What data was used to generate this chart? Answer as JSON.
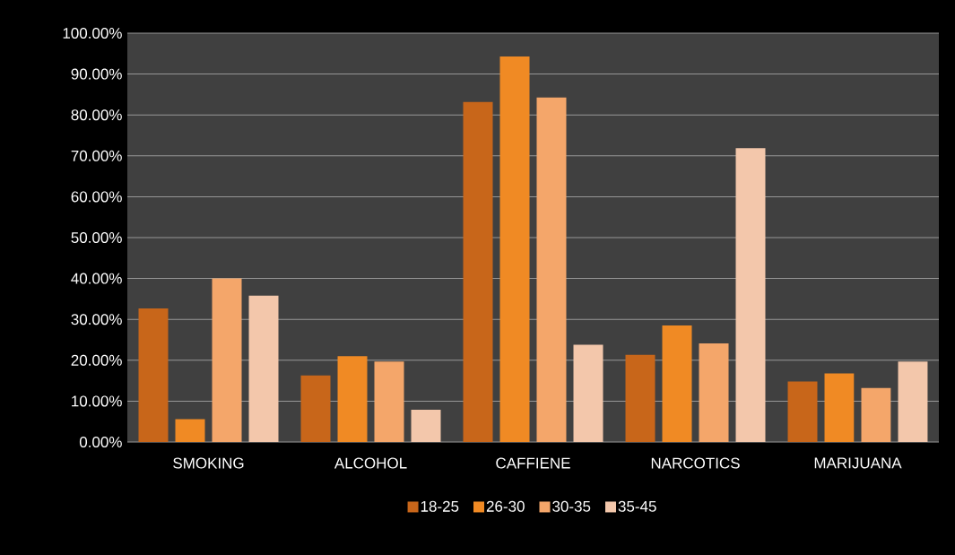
{
  "chart_data": {
    "type": "bar",
    "categories": [
      "SMOKING",
      "ALCOHOL",
      "CAFFIENE",
      "NARCOTICS",
      "MARIJUANA"
    ],
    "series": [
      {
        "name": "18-25",
        "color": "#c8661a",
        "values": [
          32.7,
          16.3,
          83.2,
          21.3,
          14.8
        ]
      },
      {
        "name": "26-30",
        "color": "#f08a24",
        "values": [
          5.6,
          21,
          94.3,
          28.5,
          16.8
        ]
      },
      {
        "name": "30-35",
        "color": "#f4a66a",
        "values": [
          40,
          19.7,
          84.3,
          24.1,
          13.2
        ]
      },
      {
        "name": "35-45",
        "color": "#f3c7ab",
        "values": [
          35.8,
          7.9,
          23.8,
          71.9,
          19.7
        ]
      }
    ],
    "ylim": [
      0,
      100
    ],
    "yticks": [
      {
        "value": 0,
        "label": "0.00%"
      },
      {
        "value": 10,
        "label": "10.00%"
      },
      {
        "value": 20,
        "label": "20.00%"
      },
      {
        "value": 30,
        "label": "30.00%"
      },
      {
        "value": 40,
        "label": "40.00%"
      },
      {
        "value": 50,
        "label": "50.00%"
      },
      {
        "value": 60,
        "label": "60.00%"
      },
      {
        "value": 70,
        "label": "70.00%"
      },
      {
        "value": 80,
        "label": "80.00%"
      },
      {
        "value": 90,
        "label": "90.00%"
      },
      {
        "value": 100,
        "label": "100.00%"
      }
    ],
    "grid": "y",
    "legend": "bottom"
  }
}
